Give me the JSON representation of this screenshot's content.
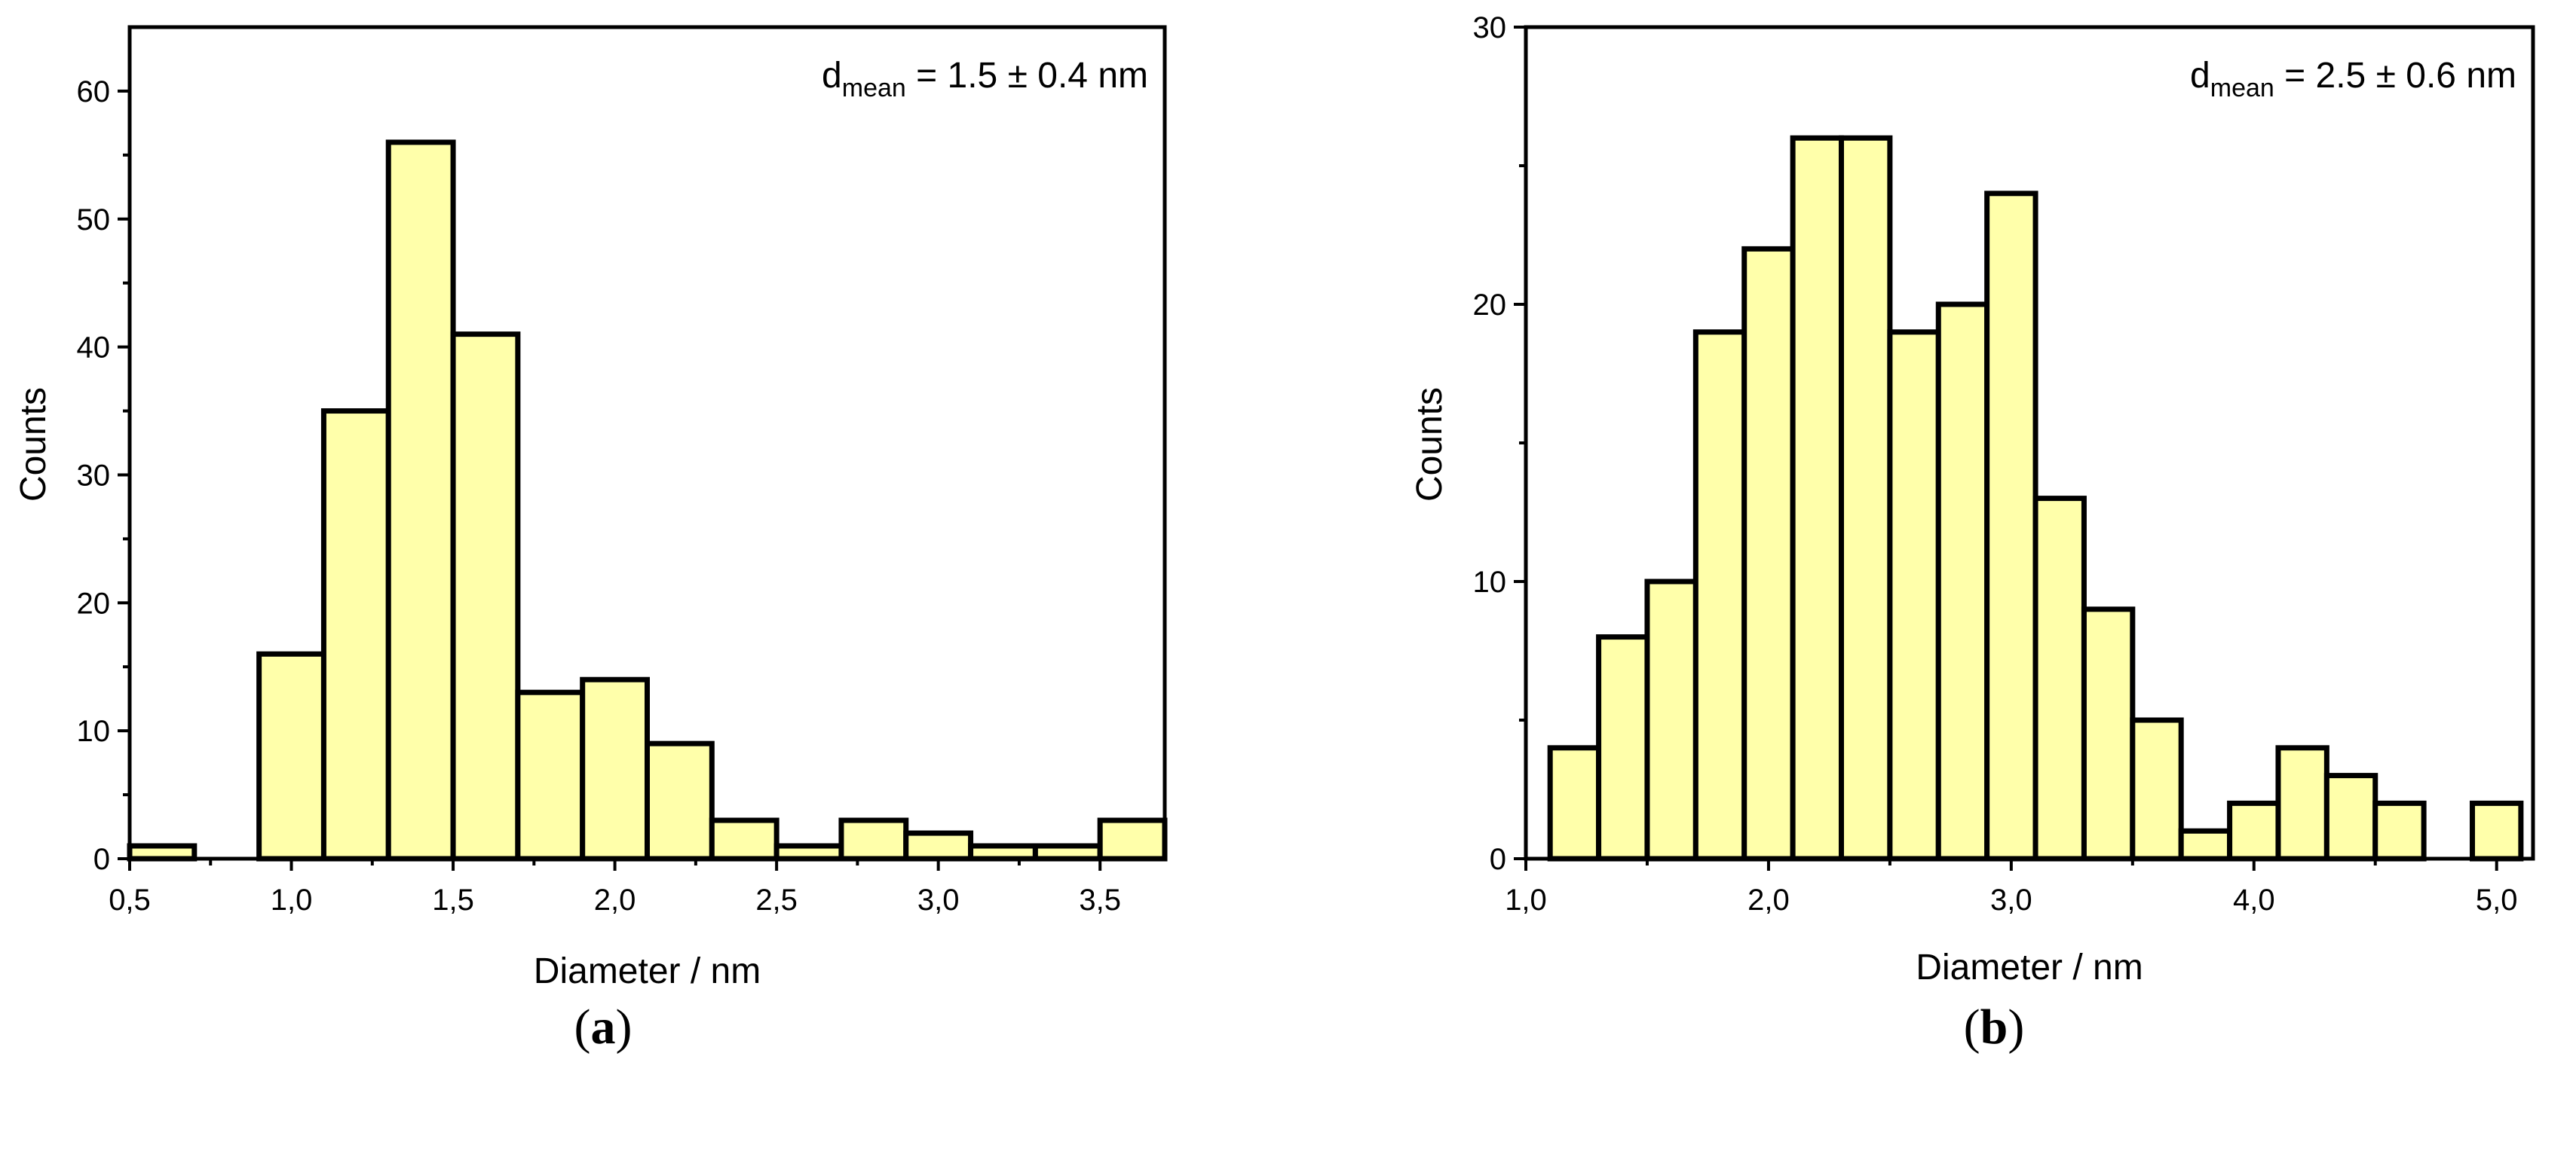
{
  "chart_data": [
    {
      "type": "bar",
      "panel_label": "a",
      "annotation": {
        "prefix": "d",
        "subscript": "mean",
        "suffix": " = 1.5 ± 0.4 nm"
      },
      "xlabel": "Diameter / nm",
      "ylabel": "Counts",
      "xlim": [
        0.5,
        3.7
      ],
      "ylim": [
        0,
        65
      ],
      "xticks": [
        0.5,
        1.0,
        1.5,
        2.0,
        2.5,
        3.0,
        3.5
      ],
      "xtick_labels": [
        "0,5",
        "1,0",
        "1,5",
        "2,0",
        "2,5",
        "3,0",
        "3,5"
      ],
      "yticks": [
        0,
        10,
        20,
        30,
        40,
        50,
        60
      ],
      "ytick_labels": [
        "0",
        "10",
        "20",
        "30",
        "40",
        "50",
        "60"
      ],
      "bin_width": 0.2,
      "bin_starts": [
        0.5,
        0.9,
        1.1,
        1.3,
        1.5,
        1.7,
        1.9,
        2.1,
        2.3,
        2.5,
        2.7,
        2.9,
        3.1,
        3.3,
        3.5
      ],
      "values": [
        1,
        16,
        35,
        56,
        41,
        13,
        14,
        9,
        3,
        1,
        3,
        2,
        1,
        1,
        3
      ]
    },
    {
      "type": "bar",
      "panel_label": "b",
      "annotation": {
        "prefix": "d",
        "subscript": "mean",
        "suffix": " = 2.5 ± 0.6 nm"
      },
      "xlabel": "Diameter / nm",
      "ylabel": "Counts",
      "xlim": [
        1.0,
        5.15
      ],
      "ylim": [
        0,
        30
      ],
      "xticks": [
        1.0,
        2.0,
        3.0,
        4.0,
        5.0
      ],
      "xtick_labels": [
        "1,0",
        "2,0",
        "3,0",
        "4,0",
        "5,0"
      ],
      "yticks": [
        0,
        10,
        20,
        30
      ],
      "ytick_labels": [
        "0",
        "10",
        "20",
        "30"
      ],
      "bin_width": 0.2,
      "bin_starts": [
        1.1,
        1.3,
        1.5,
        1.7,
        1.9,
        2.1,
        2.3,
        2.5,
        2.7,
        2.9,
        3.1,
        3.3,
        3.5,
        3.7,
        3.9,
        4.1,
        4.3,
        4.5,
        4.9
      ],
      "values": [
        4,
        8,
        10,
        19,
        22,
        26,
        26,
        19,
        20,
        24,
        13,
        9,
        5,
        1,
        2,
        4,
        3,
        2,
        2
      ]
    }
  ]
}
